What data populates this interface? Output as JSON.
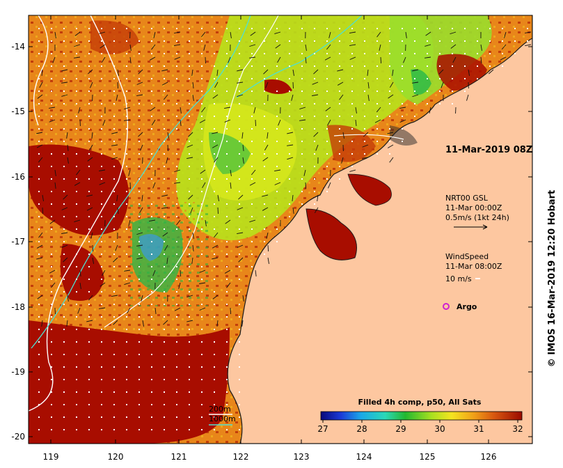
{
  "map": {
    "lat_ticks": [
      "-14",
      "-15",
      "-16",
      "-17",
      "-18",
      "-19",
      "-20"
    ],
    "lon_ticks": [
      "119",
      "120",
      "121",
      "122",
      "123",
      "124",
      "125",
      "126"
    ]
  },
  "annotations": {
    "timestamp": "11-Mar-2019 08Z",
    "current_source": "NRT00 GSL",
    "current_time": "11-Mar 00:00Z",
    "current_scale": "0.5m/s (1kt 24h)",
    "wind_title": "WindSpeed",
    "wind_time": "11-Mar 08:00Z",
    "wind_scale": "10 m/s",
    "argo_label": "Argo",
    "isobath_200": "200m",
    "isobath_1000": "1000m"
  },
  "colorbar": {
    "title": "Filled 4h comp, p50, All Sats",
    "ticks": [
      "27",
      "28",
      "29",
      "30",
      "31",
      "32"
    ]
  },
  "credit": "© IMOS 16-Mar-2019 12:20 Hobart",
  "colors": {
    "land": "#fdc7a0",
    "sst_warm": "#a80d00",
    "sst_mid": "#e8861a",
    "sst_cool": "#b8e21c",
    "sst_cold": "#27b84a",
    "isobath_200": "#ffffff",
    "isobath_1000": "#4fe0d0",
    "argo": "#d020d0"
  }
}
